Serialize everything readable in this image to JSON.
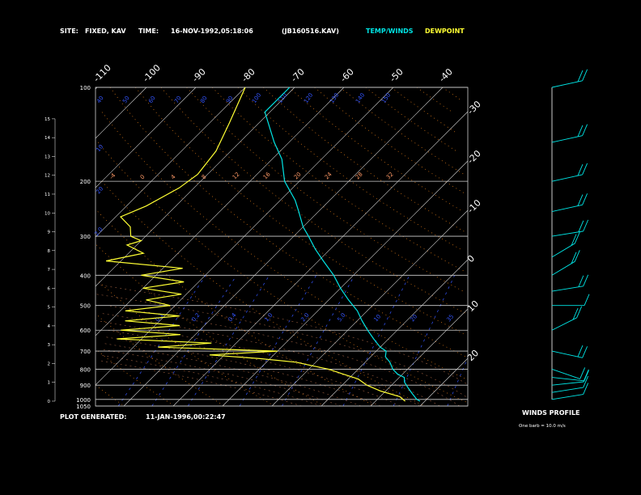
{
  "header": {
    "site_label": "SITE:",
    "site_value": "FIXED, KAV",
    "time_label": "TIME:",
    "time_value": "16-NOV-1992,05:18:06",
    "file_value": "(JB160516.KAV)",
    "temp_winds_label": "TEMP/WINDS",
    "dewpoint_label": "DEWPOINT"
  },
  "footer": {
    "plot_generated_label": "PLOT GENERATED:",
    "plot_generated_value": "11-JAN-1996,00:22:47"
  },
  "wind_panel": {
    "title": "WINDS PROFILE",
    "note": "One barb = 10.0 m/s"
  },
  "colors": {
    "temp": "#00e5e5",
    "dewpoint": "#ffff33",
    "grid": "#d0d0d0",
    "isotherm": "#d0d0d0",
    "dry_adiabat": "#ff8c1a",
    "moist_adiabat": "#ff9966",
    "mixing_ratio": "#3355ff",
    "wind": "#00e5e5"
  },
  "chart_data": {
    "type": "line",
    "title": "",
    "xlabel": "",
    "ylabel": "",
    "pressure_ticks": [
      "100",
      "200",
      "300",
      "400",
      "500",
      "600",
      "700",
      "800",
      "900",
      "1000",
      "1050"
    ],
    "height_ticks": [
      "0",
      "1",
      "2",
      "3",
      "4",
      "5",
      "6",
      "7",
      "8",
      "9",
      "10",
      "11",
      "12",
      "13",
      "14",
      "15"
    ],
    "isotherm_top_labels": [
      "-110",
      "-100",
      "-90",
      "-80",
      "-70",
      "-60",
      "-50",
      "-40"
    ],
    "isotherm_right_labels": [
      "-30",
      "-20",
      "-10",
      "0",
      "10",
      "20",
      "30"
    ],
    "dry_adiabat_labels": [
      "40",
      "50",
      "60",
      "70",
      "80",
      "90",
      "100",
      "110",
      "120",
      "130",
      "140",
      "150"
    ],
    "moist_adiabat_labels": [
      "-4",
      "0",
      "4",
      "8",
      "12",
      "16",
      "20",
      "24",
      "28",
      "32"
    ],
    "mixing_ratio_labels": [
      "10",
      "20",
      "2.0",
      "0.1",
      "0.2",
      "0.4",
      "1.0",
      "2.0",
      "5.0",
      "10",
      "20",
      "35"
    ],
    "temperature": {
      "name": "TEMP/WINDS",
      "pressure": [
        100,
        120,
        150,
        170,
        200,
        230,
        250,
        280,
        300,
        330,
        360,
        400,
        440,
        480,
        520,
        560,
        600,
        640,
        680,
        700,
        730,
        760,
        800,
        830,
        850,
        880,
        920,
        960,
        1000,
        1013
      ],
      "values": [
        -71,
        -71,
        -63,
        -58,
        -53,
        -47,
        -44,
        -40,
        -37,
        -33,
        -29,
        -24,
        -20,
        -16,
        -12,
        -9,
        -6,
        -3,
        0,
        2,
        3,
        5,
        7,
        9,
        11,
        12,
        14,
        16,
        18,
        19
      ]
    },
    "dewpoint": {
      "name": "DEWPOINT",
      "pressure": [
        100,
        130,
        160,
        190,
        210,
        240,
        260,
        280,
        300,
        310,
        320,
        340,
        360,
        380,
        400,
        420,
        440,
        460,
        480,
        500,
        520,
        540,
        560,
        580,
        600,
        620,
        640,
        660,
        680,
        700,
        720,
        740,
        760,
        780,
        800,
        830,
        860,
        900,
        940,
        980,
        1013
      ],
      "values": [
        -80,
        -76,
        -73,
        -72,
        -73,
        -76,
        -79,
        -75,
        -73,
        -70,
        -72,
        -67,
        -73,
        -56,
        -63,
        -53,
        -60,
        -51,
        -57,
        -51,
        -59,
        -47,
        -57,
        -45,
        -56,
        -43,
        -55,
        -35,
        -45,
        -20,
        -33,
        -22,
        -14,
        -10,
        -6,
        -2,
        2,
        5,
        9,
        14,
        16
      ]
    },
    "wind_barbs": {
      "pressure": [
        100,
        150,
        200,
        250,
        300,
        350,
        400,
        450,
        500,
        600,
        700,
        800,
        850,
        900,
        950,
        1000
      ],
      "speed_ms": [
        20,
        20,
        20,
        20,
        20,
        20,
        20,
        20,
        10,
        20,
        20,
        10,
        10,
        10,
        10,
        5
      ],
      "direction_deg": [
        250,
        250,
        250,
        250,
        255,
        225,
        225,
        255,
        270,
        230,
        290,
        300,
        280,
        260,
        255,
        255
      ]
    }
  }
}
